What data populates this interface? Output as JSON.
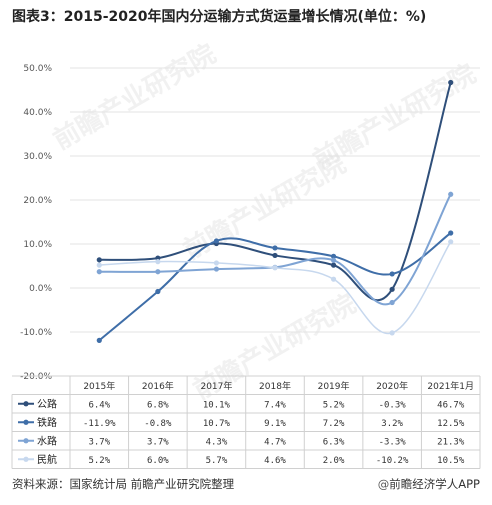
{
  "title": "图表3：2015-2020年国内分运输方式货运量增长情况(单位：%)",
  "watermark": "前瞻产业研究院",
  "footer": {
    "source": "资料来源：国家统计局 前瞻产业研究院整理",
    "brand_at": "@",
    "brand": "前瞻经济学人APP"
  },
  "chart_data": {
    "type": "line",
    "categories": [
      "2015年",
      "2016年",
      "2017年",
      "2018年",
      "2019年",
      "2020年",
      "2021年1月"
    ],
    "ylim": [
      -20,
      50
    ],
    "yticks": [
      -20,
      -10,
      0,
      10,
      20,
      30,
      40,
      50
    ],
    "ytick_labels": [
      "-20.0%",
      "-10.0%",
      "0.0%",
      "10.0%",
      "20.0%",
      "30.0%",
      "40.0%",
      "50.0%"
    ],
    "grid": true,
    "legend": "table-below",
    "series": [
      {
        "name": "公路",
        "color": "#2f4f7a",
        "values": [
          6.4,
          6.8,
          10.1,
          7.4,
          5.2,
          -0.3,
          46.7
        ],
        "labels": [
          "6.4%",
          "6.8%",
          "10.1%",
          "7.4%",
          "5.2%",
          "-0.3%",
          "46.7%"
        ]
      },
      {
        "name": "铁路",
        "color": "#3f6ea8",
        "values": [
          -11.9,
          -0.8,
          10.7,
          9.1,
          7.2,
          3.2,
          12.5
        ],
        "labels": [
          "-11.9%",
          "-0.8%",
          "10.7%",
          "9.1%",
          "7.2%",
          "3.2%",
          "12.5%"
        ]
      },
      {
        "name": "水路",
        "color": "#7fa4d4",
        "values": [
          3.7,
          3.7,
          4.3,
          4.7,
          6.3,
          -3.3,
          21.3
        ],
        "labels": [
          "3.7%",
          "3.7%",
          "4.3%",
          "4.7%",
          "6.3%",
          "-3.3%",
          "21.3%"
        ]
      },
      {
        "name": "民航",
        "color": "#c7d8ee",
        "values": [
          5.2,
          6.0,
          5.7,
          4.6,
          2.0,
          -10.2,
          10.5
        ],
        "labels": [
          "5.2%",
          "6.0%",
          "5.7%",
          "4.6%",
          "2.0%",
          "-10.2%",
          "10.5%"
        ]
      }
    ]
  }
}
